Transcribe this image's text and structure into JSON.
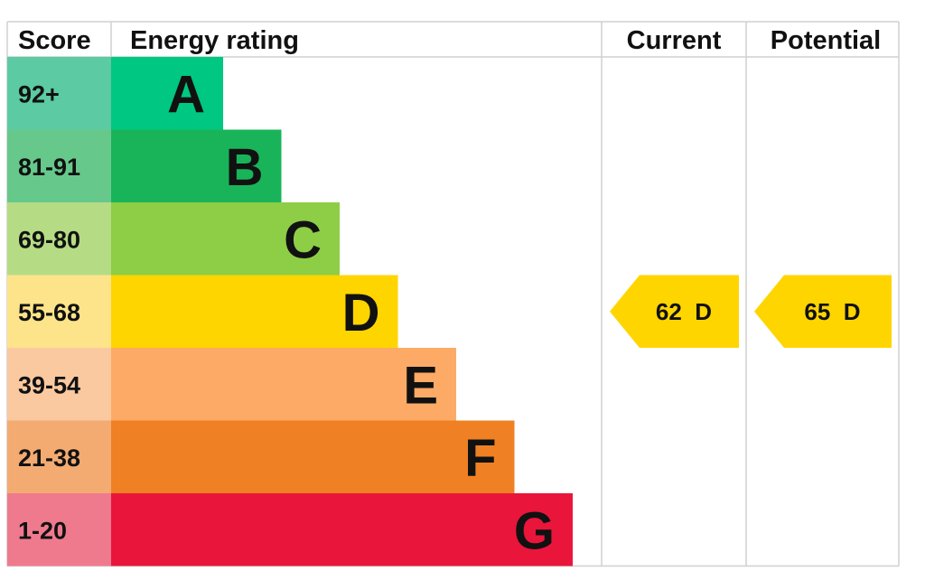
{
  "headers": {
    "score": "Score",
    "energy_rating": "Energy rating",
    "current": "Current",
    "potential": "Potential"
  },
  "chart_data": {
    "type": "bar",
    "bands": [
      {
        "letter": "A",
        "range": "92+",
        "color": "#00c781",
        "score_color": "#5ccaa2"
      },
      {
        "letter": "B",
        "range": "81-91",
        "color": "#19b459",
        "score_color": "#66c98b"
      },
      {
        "letter": "C",
        "range": "69-80",
        "color": "#8dce46",
        "score_color": "#b5dc84"
      },
      {
        "letter": "D",
        "range": "55-68",
        "color": "#ffd500",
        "score_color": "#fde48a"
      },
      {
        "letter": "E",
        "range": "39-54",
        "color": "#fcaa65",
        "score_color": "#fbc9a0"
      },
      {
        "letter": "F",
        "range": "21-38",
        "color": "#ef8023",
        "score_color": "#f3ab72"
      },
      {
        "letter": "G",
        "range": "1-20",
        "color": "#e9153b",
        "score_color": "#ef7a8e"
      }
    ],
    "current": {
      "value": 62,
      "band": "D",
      "label": "62  D"
    },
    "potential": {
      "value": 65,
      "band": "D",
      "label": "65  D"
    },
    "arrow_color": "#ffd500"
  }
}
